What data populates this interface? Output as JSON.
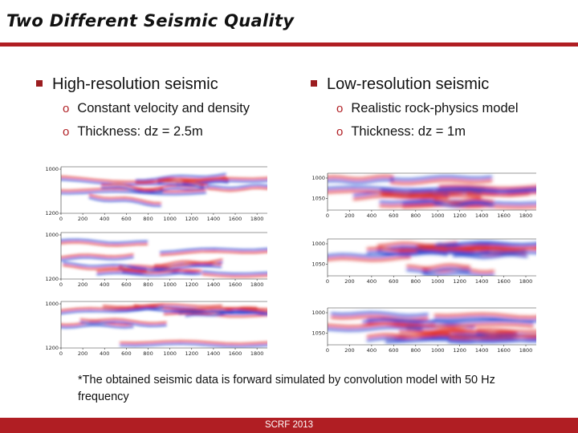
{
  "slide": {
    "title": "Two Different Seismic Quality",
    "left": {
      "heading": "High-resolution seismic",
      "points": [
        "Constant velocity and density",
        "Thickness: dz = 2.5m"
      ]
    },
    "right": {
      "heading": "Low-resolution seismic",
      "points": [
        "Realistic rock-physics model",
        "Thickness: dz = 1m"
      ]
    },
    "note": "*The obtained seismic data is forward simulated by convolution model with 50 Hz frequency",
    "footer": "SCRF 2013"
  },
  "colors": {
    "accent": "#b01e23",
    "positive": "#1f3fd0",
    "negative": "#e0302a"
  },
  "panels": {
    "x_ticks": [
      "0",
      "200",
      "400",
      "600",
      "800",
      "1000",
      "1200",
      "1400",
      "1600",
      "1800"
    ],
    "left": [
      {
        "y_ticks": [
          "1000",
          "1200"
        ]
      },
      {
        "y_ticks": [
          "1000",
          "1200"
        ]
      },
      {
        "y_ticks": [
          "1000",
          "1200"
        ]
      }
    ],
    "right": [
      {
        "y_ticks": [
          "1000",
          "1050"
        ]
      },
      {
        "y_ticks": [
          "1000",
          "1050"
        ]
      },
      {
        "y_ticks": [
          "1000",
          "1050"
        ]
      }
    ]
  }
}
